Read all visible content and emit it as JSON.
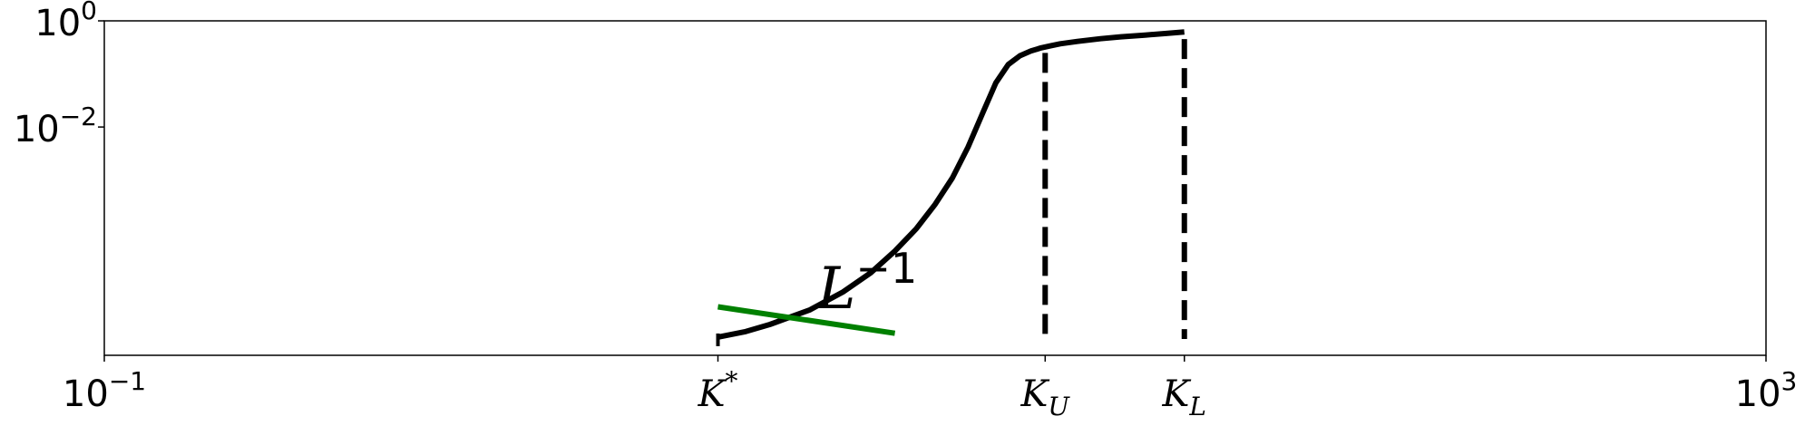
{
  "chart_data": {
    "type": "line",
    "title": "",
    "xlabel": "",
    "ylabel": "",
    "x_scale": "log",
    "y_scale": "log",
    "xlim": [
      0.1,
      1000
    ],
    "ylim": [
      5e-07,
      1
    ],
    "grid": false,
    "legend": "none",
    "x_ticks": [
      {
        "label_base": "10",
        "label_exp": "−1",
        "value": 0.1
      },
      {
        "label_base": "K",
        "label_exp": "*",
        "value": 3.0
      },
      {
        "label_base": "K",
        "label_sub": "U",
        "value": 18.4
      },
      {
        "label_base": "K",
        "label_sub": "L",
        "value": 39.8
      },
      {
        "label_base": "10",
        "label_exp": "3",
        "value": 1000
      }
    ],
    "y_ticks": [
      {
        "label_base": "10",
        "label_exp": "0",
        "value": 1
      },
      {
        "label_base": "10",
        "label_exp": "−2",
        "value": 0.01
      }
    ],
    "series": [
      {
        "color": "#000000",
        "style": "solid",
        "x": [
          3.0,
          3.5,
          4.0,
          5.0,
          6.0,
          7.0,
          8.0,
          9.0,
          10.0,
          11.0,
          12.0,
          13.0,
          14.0,
          15.0,
          16.0,
          17.0,
          18.0,
          19.0,
          20.0,
          22.0,
          25.0,
          28.0,
          32.0,
          36.0,
          39.8
        ],
        "y": [
          1.1e-06,
          1.4e-06,
          1.9e-06,
          3.6e-06,
          7.8e-06,
          1.8e-05,
          4.6e-05,
          0.00012,
          0.00035,
          0.0011,
          0.0042,
          0.018,
          0.068,
          0.15,
          0.22,
          0.27,
          0.31,
          0.34,
          0.37,
          0.41,
          0.46,
          0.5,
          0.54,
          0.58,
          0.62
        ]
      },
      {
        "color": "#008000",
        "style": "solid",
        "x": [
          3.0,
          8.0
        ],
        "y": [
          4.1e-06,
          1.3e-06
        ]
      }
    ],
    "vlines": [
      {
        "x": 18.4,
        "y_top": 0.34,
        "style": "dashed",
        "color": "#000000"
      },
      {
        "x": 39.8,
        "y_top": 0.62,
        "style": "dashed",
        "color": "#000000"
      }
    ],
    "annotations": [
      {
        "text_base": "L",
        "text_exp": "−1",
        "x": 5.2,
        "y": 5.7e-06
      }
    ]
  }
}
